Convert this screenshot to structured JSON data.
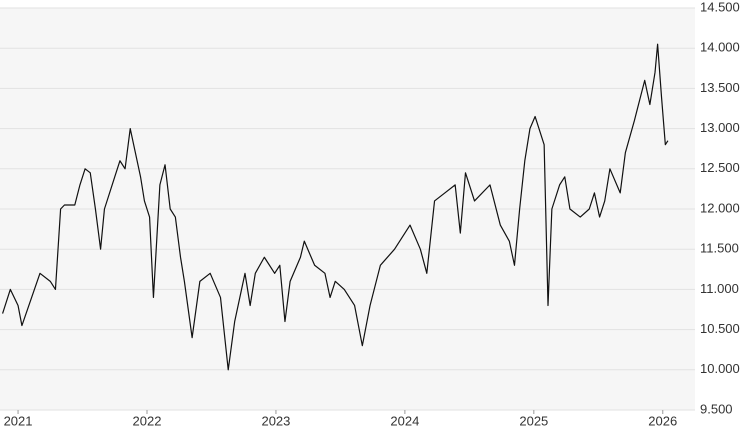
{
  "chart_data": {
    "type": "line",
    "x": [
      2020.88,
      2020.94,
      2021.0,
      2021.03,
      2021.17,
      2021.25,
      2021.29,
      2021.33,
      2021.36,
      2021.44,
      2021.48,
      2021.52,
      2021.56,
      2021.6,
      2021.64,
      2021.67,
      2021.75,
      2021.79,
      2021.83,
      2021.87,
      2021.91,
      2021.95,
      2021.98,
      2022.02,
      2022.05,
      2022.1,
      2022.14,
      2022.18,
      2022.22,
      2022.26,
      2022.29,
      2022.35,
      2022.41,
      2022.49,
      2022.57,
      2022.63,
      2022.68,
      2022.76,
      2022.8,
      2022.84,
      2022.91,
      2022.99,
      2023.03,
      2023.07,
      2023.11,
      2023.19,
      2023.22,
      2023.3,
      2023.38,
      2023.42,
      2023.46,
      2023.53,
      2023.61,
      2023.67,
      2023.73,
      2023.81,
      2023.92,
      2024.04,
      2024.12,
      2024.17,
      2024.23,
      2024.31,
      2024.39,
      2024.43,
      2024.47,
      2024.54,
      2024.66,
      2024.74,
      2024.81,
      2024.85,
      2024.89,
      2024.93,
      2024.97,
      2025.01,
      2025.08,
      2025.11,
      2025.14,
      2025.2,
      2025.24,
      2025.28,
      2025.36,
      2025.43,
      2025.47,
      2025.51,
      2025.55,
      2025.59,
      2025.67,
      2025.71,
      2025.78,
      2025.86,
      2025.9,
      2025.94,
      2025.96,
      2025.99,
      2026.02,
      2026.04
    ],
    "series": [
      {
        "color": "#111111",
        "values": [
          10700,
          11000,
          10800,
          10550,
          11200,
          11100,
          11000,
          12000,
          12050,
          12050,
          12300,
          12500,
          12450,
          12000,
          11500,
          12000,
          12400,
          12600,
          12500,
          13000,
          12700,
          12400,
          12100,
          11900,
          10900,
          12300,
          12550,
          12000,
          11900,
          11400,
          11100,
          10400,
          11100,
          11200,
          10900,
          10000,
          10600,
          11200,
          10800,
          11200,
          11400,
          11200,
          11300,
          10600,
          11100,
          11400,
          11600,
          11300,
          11200,
          10900,
          11100,
          11000,
          10800,
          10300,
          10800,
          11300,
          11500,
          11800,
          11500,
          11200,
          12100,
          12200,
          12300,
          11700,
          12450,
          12100,
          12300,
          11800,
          11600,
          11300,
          12000,
          12600,
          13000,
          13150,
          12800,
          10800,
          12000,
          12300,
          12400,
          12000,
          11900,
          12000,
          12200,
          11900,
          12100,
          12500,
          12200,
          12700,
          13100,
          13600,
          13300,
          13700,
          14050,
          13400,
          12800,
          12850
        ]
      }
    ],
    "xlim": [
      2020.86,
      2026.25
    ],
    "xticks": [
      2021,
      2022,
      2023,
      2024,
      2025,
      2026
    ],
    "ylim": [
      9500,
      14500
    ],
    "yticks": [
      {
        "value": 9500,
        "label": "9.500"
      },
      {
        "value": 10000,
        "label": "10.000"
      },
      {
        "value": 10500,
        "label": "10.500"
      },
      {
        "value": 11000,
        "label": "11.000"
      },
      {
        "value": 11500,
        "label": "11.500"
      },
      {
        "value": 12000,
        "label": "12.000"
      },
      {
        "value": 12500,
        "label": "12.500"
      },
      {
        "value": 13000,
        "label": "13.000"
      },
      {
        "value": 13500,
        "label": "13.500"
      },
      {
        "value": 14000,
        "label": "14.000"
      },
      {
        "value": 14500,
        "label": "14.500"
      }
    ],
    "grid": true
  }
}
